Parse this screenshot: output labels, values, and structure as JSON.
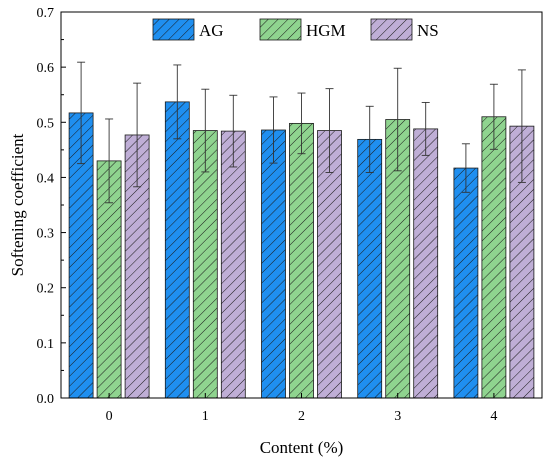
{
  "chart_data": {
    "type": "bar",
    "categories": [
      "0",
      "1",
      "2",
      "3",
      "4"
    ],
    "xlabel": "Content (%)",
    "ylabel": "Softening coefficient",
    "ylim": [
      0,
      0.7
    ],
    "yticks": [
      "0.0",
      "0.1",
      "0.2",
      "0.3",
      "0.4",
      "0.5",
      "0.6",
      "0.7"
    ],
    "grid": false,
    "legend_position": "top",
    "series": [
      {
        "name": "AG",
        "color": "#1f8ff0",
        "values": [
          0.517,
          0.537,
          0.486,
          0.469,
          0.417
        ],
        "errors": [
          0.092,
          0.067,
          0.06,
          0.06,
          0.044
        ]
      },
      {
        "name": "HGM",
        "color": "#8fd48f",
        "values": [
          0.43,
          0.485,
          0.498,
          0.505,
          0.51
        ],
        "errors": [
          0.076,
          0.075,
          0.055,
          0.093,
          0.059
        ]
      },
      {
        "name": "NS",
        "color": "#bfaed6",
        "values": [
          0.477,
          0.484,
          0.485,
          0.488,
          0.493
        ],
        "errors": [
          0.094,
          0.065,
          0.076,
          0.048,
          0.102
        ]
      }
    ]
  }
}
